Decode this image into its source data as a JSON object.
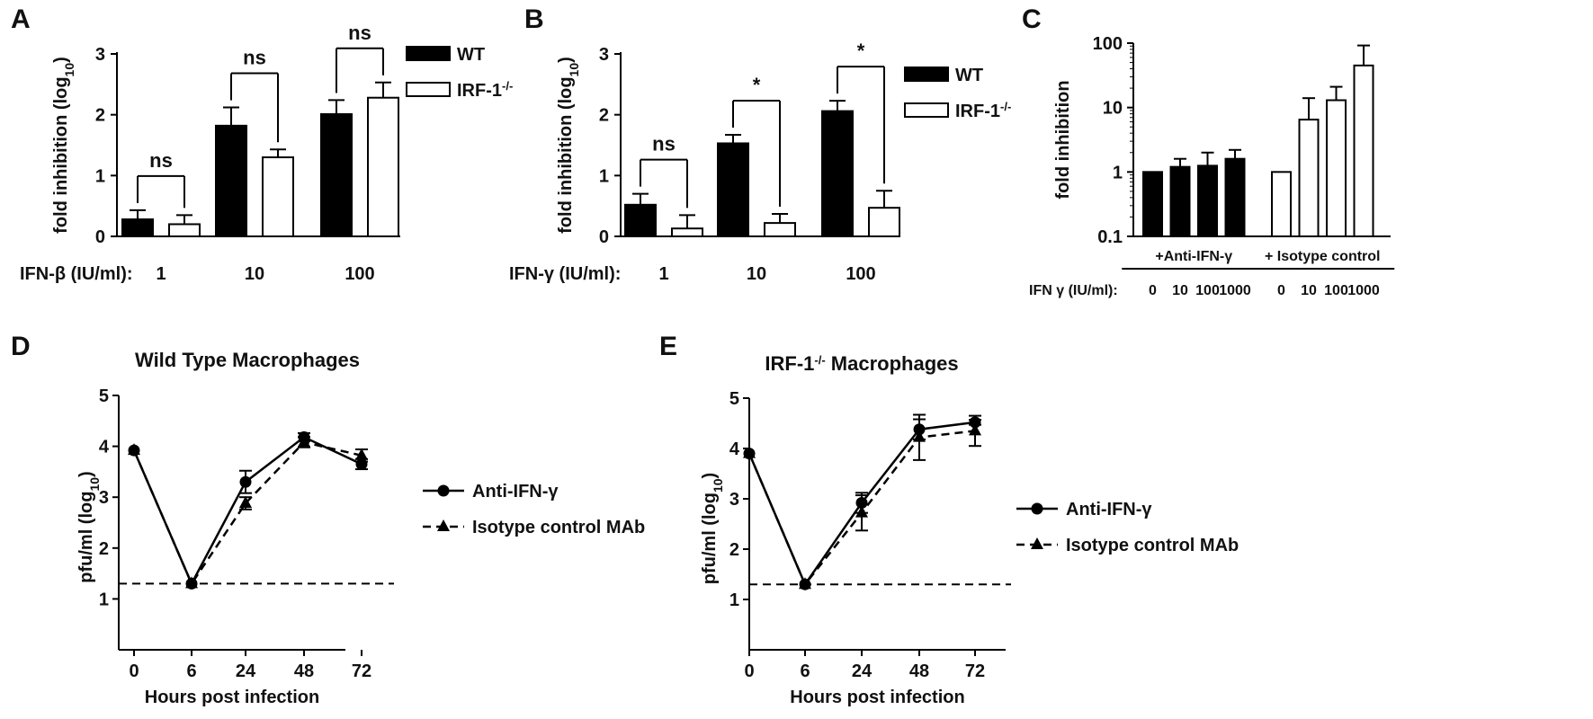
{
  "colors": {
    "wt": "#000000",
    "irf": "#ffffff",
    "stroke": "#000000"
  },
  "chart_data": [
    {
      "panel": "A",
      "type": "bar",
      "categories": [
        "1",
        "10",
        "100"
      ],
      "row_label": "IFN-β (IU/ml):",
      "ylabel": "fold inhibition (log10)",
      "ylim": [
        0,
        3
      ],
      "yticks": [
        "0",
        "1",
        "2",
        "3"
      ],
      "series": [
        {
          "name": "WT",
          "values": [
            0.28,
            1.82,
            2.01
          ],
          "errors": [
            0.15,
            0.3,
            0.23
          ]
        },
        {
          "name": "IRF-1-/-",
          "values": [
            0.2,
            1.3,
            2.28
          ],
          "errors": [
            0.15,
            0.13,
            0.25
          ]
        }
      ],
      "significance": [
        "ns",
        "ns",
        "ns"
      ],
      "legend_position": "top-right"
    },
    {
      "panel": "B",
      "type": "bar",
      "categories": [
        "1",
        "10",
        "100"
      ],
      "row_label": "IFN-γ (IU/ml):",
      "ylabel": "fold inhibition (log10)",
      "ylim": [
        0,
        3
      ],
      "yticks": [
        "0",
        "1",
        "2",
        "3"
      ],
      "series": [
        {
          "name": "WT",
          "values": [
            0.52,
            1.53,
            2.06
          ],
          "errors": [
            0.18,
            0.14,
            0.17
          ]
        },
        {
          "name": "IRF-1-/-",
          "values": [
            0.13,
            0.22,
            0.47
          ],
          "errors": [
            0.22,
            0.15,
            0.28
          ]
        }
      ],
      "significance": [
        "ns",
        "*",
        "*"
      ],
      "legend_position": "top-right"
    },
    {
      "panel": "C",
      "type": "bar",
      "scale": "log",
      "ylabel": "fold inhibition",
      "ylim": [
        0.1,
        100
      ],
      "yticks": [
        "0.1",
        "1",
        "10",
        "100"
      ],
      "row_label": "IFN γ (IU/ml):",
      "groups": [
        {
          "label": "+Anti-IFN-γ",
          "categories": [
            "0",
            "10",
            "100",
            "1000"
          ],
          "values": [
            1,
            1.2,
            1.25,
            1.6
          ],
          "errors_upper": [
            1,
            1.6,
            2.0,
            2.2
          ]
        },
        {
          "label": "+ Isotype control",
          "categories": [
            "0",
            "10",
            "100",
            "1000"
          ],
          "values": [
            1,
            6.5,
            13,
            45
          ],
          "errors_upper": [
            1,
            14,
            21,
            92
          ]
        }
      ]
    },
    {
      "panel": "D",
      "type": "line",
      "title": "Wild Type Macrophages",
      "xlabel": "Hours post infection",
      "ylabel": "pfu/ml (log10)",
      "x": [
        "0",
        "6",
        "24",
        "48",
        "72"
      ],
      "ylim": [
        0,
        5
      ],
      "yticks": [
        "1",
        "2",
        "3",
        "4",
        "5"
      ],
      "detection_limit": 1.3,
      "series": [
        {
          "name": "Anti-IFN-γ",
          "marker": "circle",
          "dash": false,
          "values": [
            3.92,
            1.3,
            3.3,
            4.18,
            3.65
          ],
          "errors": [
            0,
            0,
            0.22,
            0.08,
            0.1
          ]
        },
        {
          "name": "Isotype control MAb",
          "marker": "triangle",
          "dash": true,
          "values": [
            3.92,
            1.3,
            2.88,
            4.08,
            3.82
          ],
          "errors": [
            0,
            0,
            0.12,
            0.1,
            0.12
          ]
        }
      ],
      "legend_position": "right"
    },
    {
      "panel": "E",
      "type": "line",
      "title_main": "IRF-1",
      "title_sup": "-/-",
      "title_rest": " Macrophages",
      "xlabel": "Hours post infection",
      "ylabel": "pfu/ml (log10)",
      "x": [
        "0",
        "6",
        "24",
        "48",
        "72"
      ],
      "ylim": [
        0,
        5
      ],
      "yticks": [
        "1",
        "2",
        "3",
        "4",
        "5"
      ],
      "detection_limit": 1.3,
      "series": [
        {
          "name": "Anti-IFN-γ",
          "marker": "circle",
          "dash": false,
          "values": [
            3.9,
            1.3,
            2.92,
            4.38,
            4.52
          ],
          "errors": [
            0,
            0,
            0.2,
            0.2,
            0.05
          ]
        },
        {
          "name": "Isotype control MAb",
          "marker": "triangle",
          "dash": true,
          "values": [
            3.9,
            1.3,
            2.72,
            4.22,
            4.35
          ],
          "errors": [
            0,
            0,
            0.35,
            0.45,
            0.3
          ]
        }
      ],
      "legend_position": "right"
    }
  ]
}
